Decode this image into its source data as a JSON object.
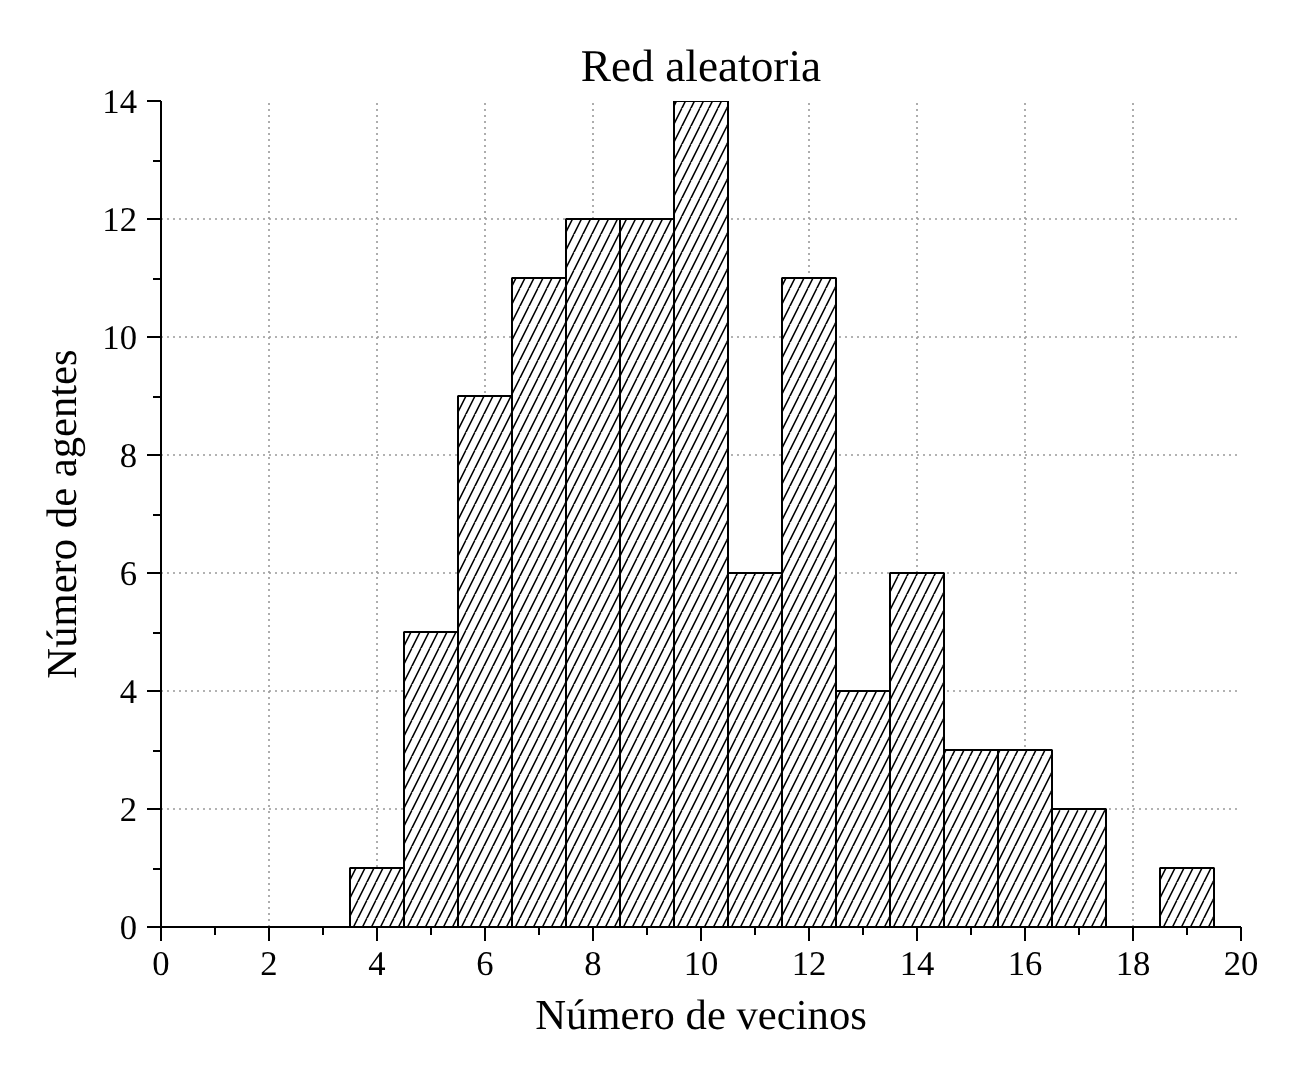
{
  "chart_data": {
    "type": "histogram",
    "title": "Red aleatoria",
    "xlabel": "Número de vecinos",
    "ylabel": "Número de agentes",
    "bins": [
      3.5,
      4.5,
      5.5,
      6.5,
      7.5,
      8.5,
      9.5,
      10.5,
      11.5,
      12.5,
      13.5,
      14.5,
      15.5,
      16.5,
      17.5,
      18.5,
      19.5
    ],
    "values": [
      1,
      5,
      9,
      11,
      12,
      12,
      14,
      6,
      11,
      4,
      6,
      3,
      3,
      2,
      0,
      1
    ],
    "color": "#ffffff",
    "xlim": [
      0,
      20
    ],
    "ylim": [
      0,
      14
    ],
    "xticks": [
      0,
      {
        "value": 1,
        "label": null
      },
      2,
      {
        "value": 3,
        "label": null
      },
      4,
      {
        "value": 5,
        "label": null
      },
      6,
      {
        "value": 7,
        "label": null
      },
      8,
      {
        "value": 9,
        "label": null
      },
      10,
      {
        "value": 11,
        "label": null
      },
      12,
      {
        "value": 13,
        "label": null
      },
      14,
      {
        "value": 15,
        "label": null
      },
      16,
      {
        "value": 17,
        "label": null
      },
      18,
      {
        "value": 19,
        "label": null
      },
      20
    ],
    "yticks": [
      0,
      {
        "value": 1,
        "label": null
      },
      2,
      {
        "value": 3,
        "label": null
      },
      4,
      {
        "value": 5,
        "label": null
      },
      6,
      {
        "value": 7,
        "label": null
      },
      8,
      {
        "value": 9,
        "label": null
      },
      10,
      {
        "value": 11,
        "label": null
      },
      12,
      {
        "value": 13,
        "label": null
      },
      14
    ],
    "grid": true
  }
}
